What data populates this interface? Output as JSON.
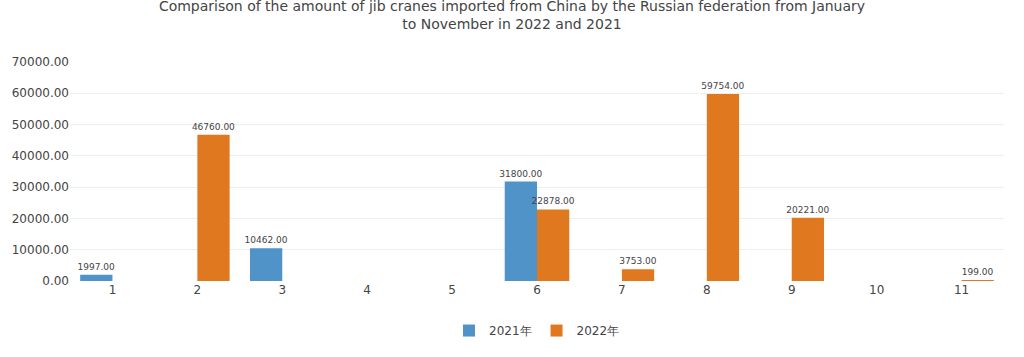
{
  "chart_data": {
    "type": "bar",
    "title": "Comparison of the amount of jib cranes imported from China by the Russian federation from January\nto November in 2022 and 2021",
    "categories": [
      "1",
      "2",
      "3",
      "4",
      "5",
      "6",
      "7",
      "8",
      "9",
      "10",
      "11"
    ],
    "series": [
      {
        "name": "2021年",
        "color": "#4F93C8",
        "values": [
          1997.0,
          0,
          10462.0,
          0,
          0,
          31800.0,
          0,
          0,
          0,
          0,
          0
        ],
        "value_labels": [
          "1997.00",
          null,
          "10462.00",
          null,
          null,
          "31800.00",
          null,
          null,
          null,
          null,
          null
        ]
      },
      {
        "name": "2022年",
        "color": "#E07820",
        "values": [
          0,
          46760.0,
          0,
          0,
          0,
          22878.0,
          3753.0,
          59754.0,
          20221.0,
          0,
          199.0
        ],
        "value_labels": [
          null,
          "46760.00",
          null,
          null,
          null,
          "22878.00",
          "3753.00",
          "59754.00",
          "20221.00",
          null,
          "199.00"
        ]
      }
    ],
    "ylim": [
      0,
      70000
    ],
    "yticks": [
      {
        "value": 0,
        "label": "0.00"
      },
      {
        "value": 10000,
        "label": "10000.00"
      },
      {
        "value": 20000,
        "label": "20000.00"
      },
      {
        "value": 30000,
        "label": "30000.00"
      },
      {
        "value": 40000,
        "label": "40000.00"
      },
      {
        "value": 50000,
        "label": "50000.00"
      },
      {
        "value": 60000,
        "label": "60000.00"
      },
      {
        "value": 70000,
        "label": "70000.00"
      }
    ],
    "grid": true,
    "legend": "bottom",
    "data_labels": true
  }
}
